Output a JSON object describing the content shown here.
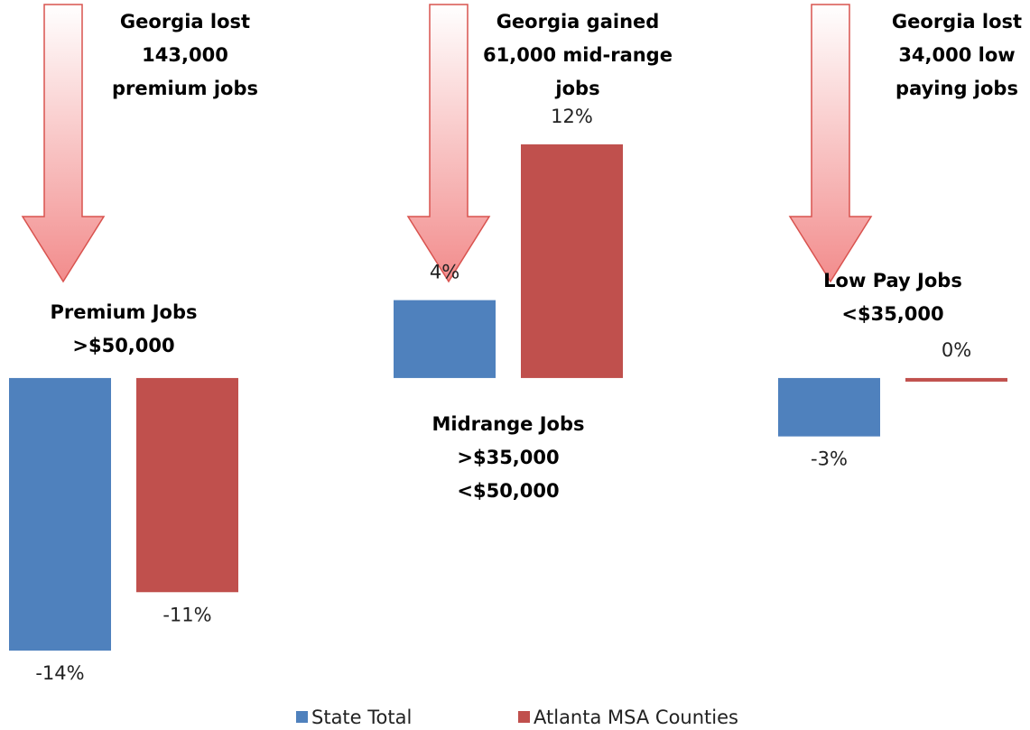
{
  "chart_data": {
    "type": "bar",
    "categories": [
      "Premium Jobs\n>$50,000",
      "Midrange Jobs\n>$35,000\n<$50,000",
      "Low Pay Jobs\n<$35,000"
    ],
    "series": [
      {
        "name": "State Total",
        "color": "#4f81bd",
        "values": [
          -14,
          4,
          -3
        ],
        "value_labels": [
          "-14%",
          "4%",
          "-3%"
        ]
      },
      {
        "name": "Atlanta MSA Counties",
        "color": "#c0504d",
        "values": [
          -11,
          12,
          0
        ],
        "value_labels": [
          "-11%",
          "12%",
          "0%"
        ]
      }
    ],
    "annotations": [
      "Georgia lost\n143,000\npremium jobs",
      "Georgia gained\n61,000 mid-range\njobs",
      "Georgia lost\n34,000 low\npaying jobs"
    ]
  }
}
